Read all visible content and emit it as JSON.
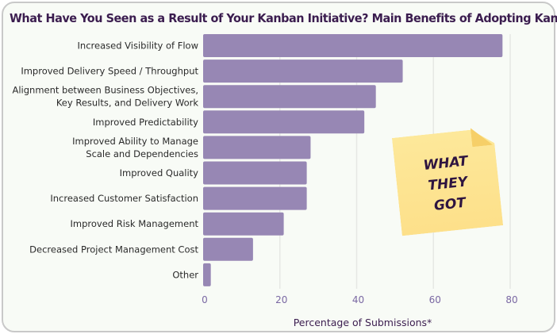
{
  "chart_data": {
    "type": "bar",
    "orientation": "horizontal",
    "title": "What Have You Seen as a Result of Your Kanban Initiative? Main Benefits of Adopting Kanban",
    "xlabel": "Percentage of Submissions*",
    "ylabel": "",
    "categories": [
      [
        "Increased Visibility of Flow"
      ],
      [
        "Improved Delivery Speed / Throughput"
      ],
      [
        "Alignment between Business Objectives,",
        "Key Results, and Delivery Work"
      ],
      [
        "Improved Predictability"
      ],
      [
        "Improved Ability to Manage",
        "Scale and Dependencies"
      ],
      [
        "Improved Quality"
      ],
      [
        "Increased Customer Satisfaction"
      ],
      [
        "Improved Risk Management"
      ],
      [
        "Decreased Project Management Cost"
      ],
      [
        "Other"
      ]
    ],
    "values": [
      78,
      52,
      45,
      42,
      28,
      27,
      27,
      21,
      13,
      2
    ],
    "xlim": [
      0,
      84
    ],
    "xticks": [
      0,
      20,
      40,
      60,
      80
    ],
    "grid": true,
    "colors": {
      "bar": "#9787b4",
      "tick": "#7a68a3",
      "title": "#3b1d4f",
      "grid": "#e6e8e4"
    }
  },
  "sticky_note": {
    "text": "WHAT\nTHEY\nGOT"
  }
}
